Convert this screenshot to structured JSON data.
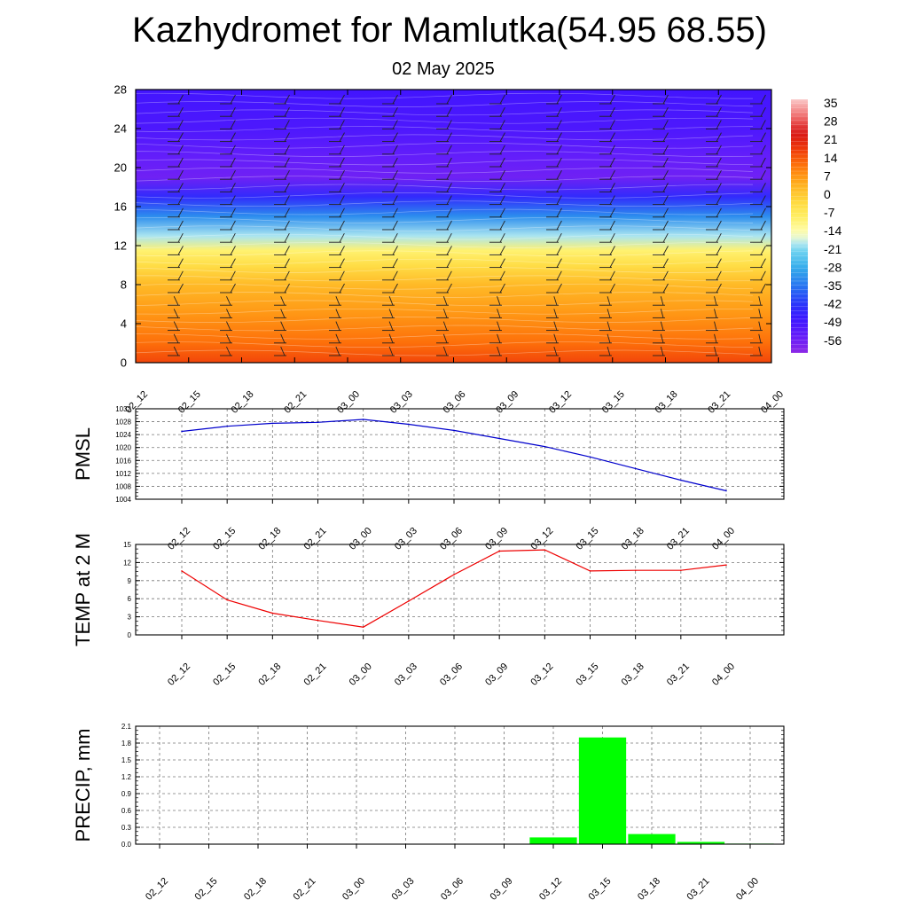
{
  "title": "Kazhydromet for Mamlutka(54.95 68.55)",
  "subtitle": "02 May 2025",
  "time_labels": [
    "02_12",
    "02_15",
    "02_18",
    "02_21",
    "03_00",
    "03_03",
    "03_06",
    "03_09",
    "03_12",
    "03_15",
    "03_18",
    "03_21",
    "04_00"
  ],
  "chart_data": [
    {
      "type": "heatmap",
      "name": "vertical-cross-section",
      "x_ticks": [
        "02_12",
        "02_15",
        "02_18",
        "02_21",
        "03_00",
        "03_03",
        "03_06",
        "03_09",
        "03_12",
        "03_15",
        "03_18",
        "03_21",
        "04_00"
      ],
      "y_ticks": [
        0,
        4,
        8,
        12,
        16,
        20,
        24,
        28
      ],
      "ylim": [
        0,
        28
      ],
      "colorbar": {
        "labels": [
          35,
          28,
          21,
          14,
          7,
          0,
          -7,
          -14,
          -21,
          -28,
          -35,
          -42,
          -49,
          -56
        ],
        "range": [
          -63,
          42
        ]
      },
      "layer_temperatures_by_height": [
        {
          "y": 0,
          "value": 20
        },
        {
          "y": 2,
          "value": 15
        },
        {
          "y": 5,
          "value": 10
        },
        {
          "y": 8,
          "value": 5
        },
        {
          "y": 10,
          "value": -2
        },
        {
          "y": 11.5,
          "value": -8
        },
        {
          "y": 13,
          "value": -18
        },
        {
          "y": 15,
          "value": -32
        },
        {
          "y": 17,
          "value": -45
        },
        {
          "y": 19,
          "value": -58
        },
        {
          "y": 21,
          "value": -56
        },
        {
          "y": 24,
          "value": -52
        },
        {
          "y": 28,
          "value": -50
        }
      ],
      "wind_barbs": true
    },
    {
      "type": "line",
      "name": "PMSL",
      "ylabel": "PMSL",
      "ylim": [
        1004,
        1032
      ],
      "y_ticks": [
        1004,
        1008,
        1012,
        1016,
        1020,
        1024,
        1028,
        1032
      ],
      "categories": [
        "02_12",
        "02_15",
        "02_18",
        "02_21",
        "03_00",
        "03_03",
        "03_06",
        "03_09",
        "03_12",
        "03_15",
        "03_18",
        "03_21",
        "04_00"
      ],
      "values": [
        1025,
        1026.6,
        1027.5,
        1027.8,
        1028.7,
        1027.2,
        1025.3,
        1022.8,
        1020.3,
        1017.1,
        1013.5,
        1009.9,
        1006.6
      ],
      "color": "#0000cc",
      "grid": true
    },
    {
      "type": "line",
      "name": "TEMP at 2 M",
      "ylabel": "TEMP at 2 M",
      "ylim": [
        0,
        15
      ],
      "y_ticks": [
        0,
        3,
        6,
        9,
        12,
        15
      ],
      "categories": [
        "02_12",
        "02_15",
        "02_18",
        "02_21",
        "03_00",
        "03_03",
        "03_06",
        "03_09",
        "03_12",
        "03_15",
        "03_18",
        "03_21",
        "04_00"
      ],
      "values": [
        10.6,
        5.8,
        3.6,
        2.4,
        1.3,
        5.6,
        10.0,
        13.9,
        14.1,
        10.6,
        10.7,
        10.7,
        11.6
      ],
      "color": "#ee0000",
      "grid": true
    },
    {
      "type": "bar",
      "name": "PRECIP, mm",
      "ylabel": "PRECIP, mm",
      "ylim": [
        0,
        2.1
      ],
      "y_ticks": [
        "0.0",
        "0.3",
        "0.6",
        "0.9",
        "1.2",
        "1.5",
        "1.8",
        "2.1"
      ],
      "categories": [
        "02_12",
        "02_15",
        "02_18",
        "02_21",
        "03_00",
        "03_03",
        "03_06",
        "03_09",
        "03_12",
        "03_15",
        "03_18",
        "03_21",
        "04_00"
      ],
      "values": [
        0,
        0,
        0,
        0,
        0,
        0,
        0,
        0,
        0.12,
        1.9,
        0.18,
        0.04,
        0.01
      ],
      "color": "#00ff00",
      "grid": true
    }
  ]
}
